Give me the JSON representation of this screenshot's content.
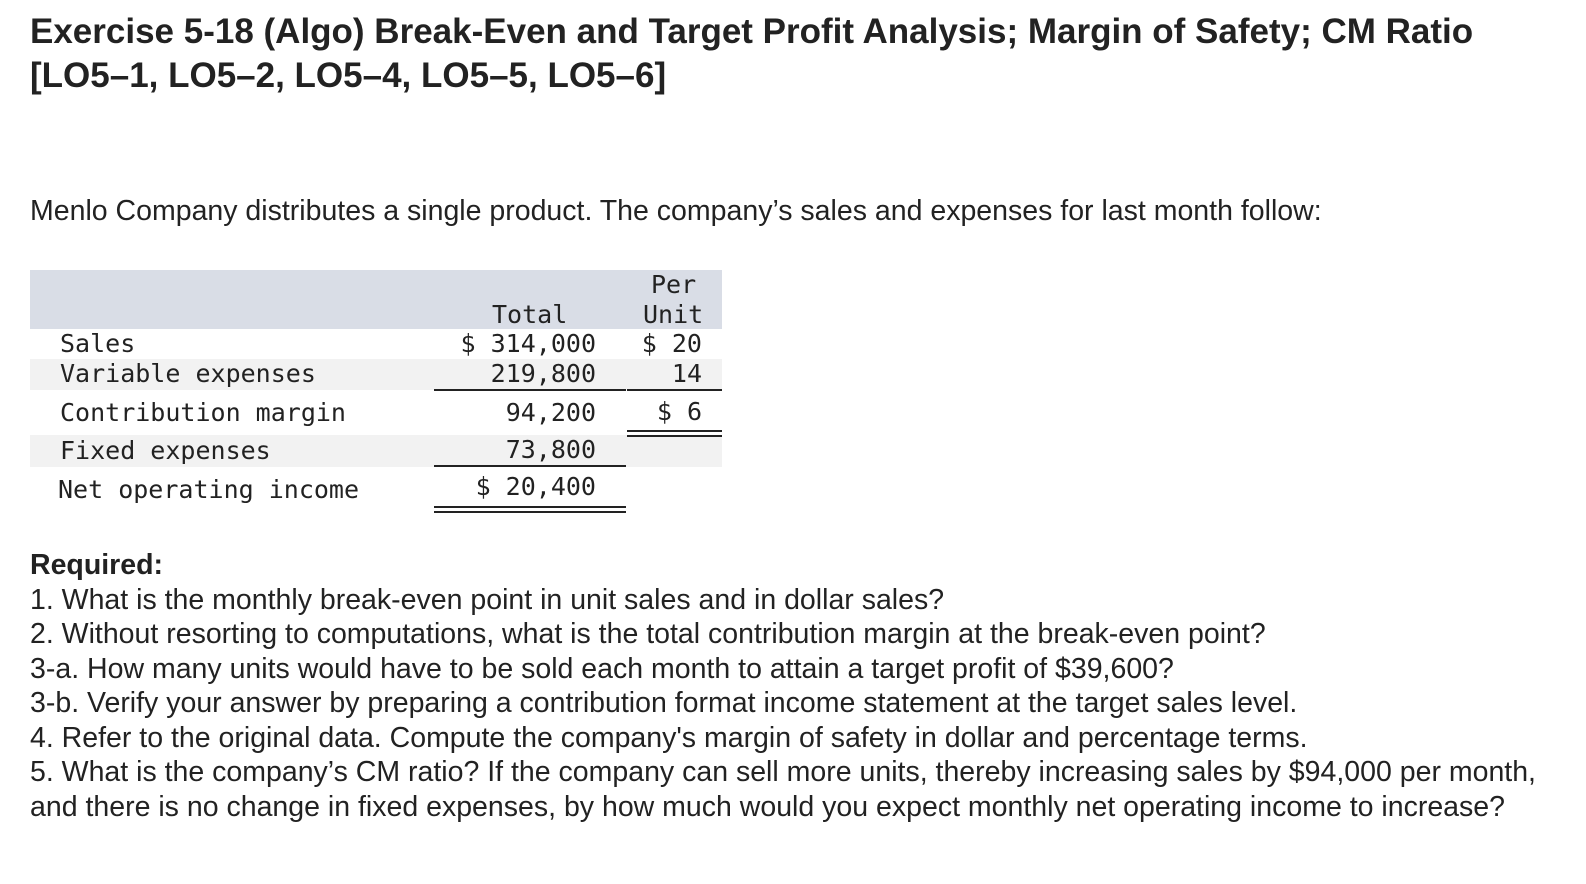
{
  "title": "Exercise 5-18 (Algo) Break-Even and Target Profit Analysis; Margin of Safety; CM Ratio [LO5–1, LO5–2, LO5–4, LO5–5, LO5–6]",
  "intro": "Menlo Company distributes a single product. The company’s sales and expenses for last month follow:",
  "table": {
    "header_total": "Total",
    "header_per": "Per",
    "header_unit": "Unit",
    "rows": [
      {
        "label": "Sales",
        "total": "$ 314,000",
        "unit": "$ 20"
      },
      {
        "label": "Variable expenses",
        "total": "219,800",
        "unit": "14"
      },
      {
        "label": "Contribution margin",
        "total": "94,200",
        "unit": "$ 6"
      },
      {
        "label": "Fixed expenses",
        "total": "73,800",
        "unit": ""
      },
      {
        "label": "Net operating income",
        "total": "$ 20,400",
        "unit": ""
      }
    ]
  },
  "required": {
    "heading": "Required:",
    "questions": [
      "1. What is the monthly break-even point in unit sales and in dollar sales?",
      "2. Without resorting to computations, what is the total contribution margin at the break-even point?",
      "3-a. How many units would have to be sold each month to attain a target profit of $39,600?",
      "3-b. Verify your answer by preparing a contribution format income statement at the target sales level.",
      "4. Refer to the original data. Compute the company's margin of safety in dollar and percentage terms.",
      "5. What is the company’s CM ratio? If the company can sell more units, thereby increasing sales by $94,000 per month, and there is no change in fixed expenses, by how much would you expect monthly net operating income to increase?"
    ]
  }
}
